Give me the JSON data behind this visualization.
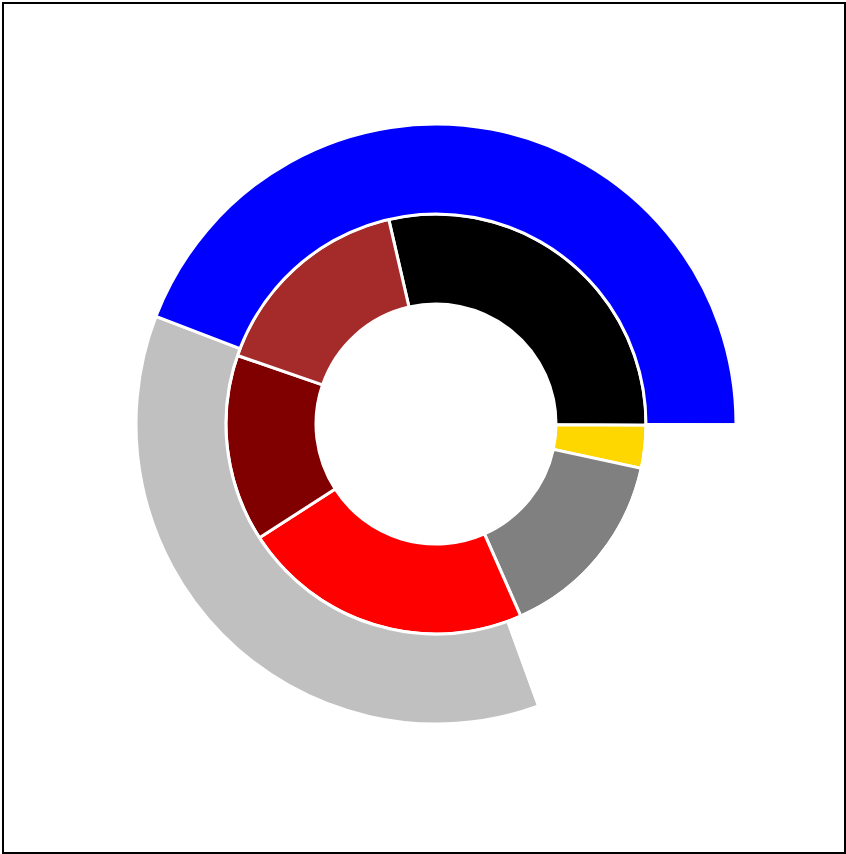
{
  "chart_data": {
    "type": "donut",
    "series": [
      {
        "values": [
          28.7,
          3.3,
          15.0,
          22.5,
          14.4,
          16.1
        ],
        "colors": [
          "#000000",
          "#ffd700",
          "#808080",
          "#ff0000",
          "#800000",
          "#a52a2a"
        ]
      },
      {
        "values": [
          36.4,
          44.2,
          19.4
        ],
        "colors": [
          "#c0c0c0",
          "#0000ff",
          "#ffffff"
        ]
      }
    ]
  }
}
